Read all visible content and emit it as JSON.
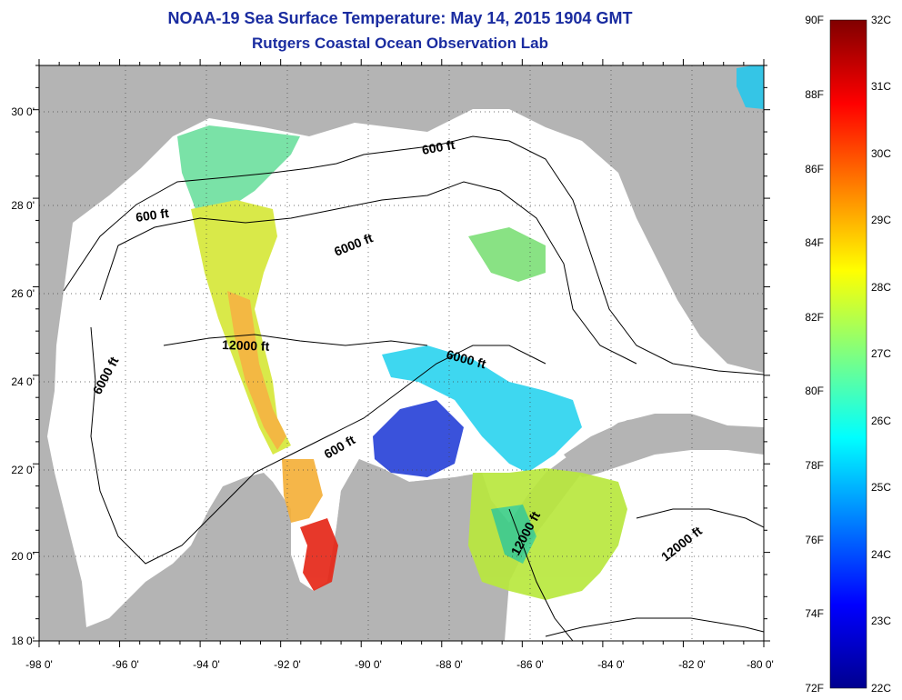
{
  "title_line1": "NOAA-19 Sea Surface Temperature:  May 14, 2015 1904 GMT",
  "title_line2": "Rutgers Coastal Ocean Observation Lab",
  "map": {
    "lon_range": [
      -98,
      -80
    ],
    "lat_range": [
      18,
      31
    ],
    "x_ticks": [
      "-98 0'",
      "-96 0'",
      "-94 0'",
      "-92 0'",
      "-90 0'",
      "-88 0'",
      "-86 0'",
      "-84 0'",
      "-82 0'",
      "-80 0'"
    ],
    "y_ticks": [
      "30 0'",
      "28 0'",
      "26 0'",
      "24 0'",
      "22 0'",
      "20 0'",
      "18 0'"
    ],
    "grid": "dotted",
    "contour_labels": [
      "600 ft",
      "600 ft",
      "6000 ft",
      "6000 ft",
      "6000 ft",
      "12000 ft",
      "600 ft",
      "12000 ft",
      "12000 ft"
    ],
    "land_color": "#b4b4b4",
    "ocean_color": "#ffffff"
  },
  "colorbar": {
    "fahrenheit_labels": [
      "90F",
      "88F",
      "86F",
      "84F",
      "82F",
      "80F",
      "78F",
      "76F",
      "74F",
      "72F"
    ],
    "celsius_labels": [
      "32C",
      "31C",
      "30C",
      "29C",
      "28C",
      "27C",
      "26C",
      "25C",
      "24C",
      "23C",
      "22C"
    ],
    "min_celsius": 22,
    "max_celsius": 32,
    "colormap": "jet"
  }
}
